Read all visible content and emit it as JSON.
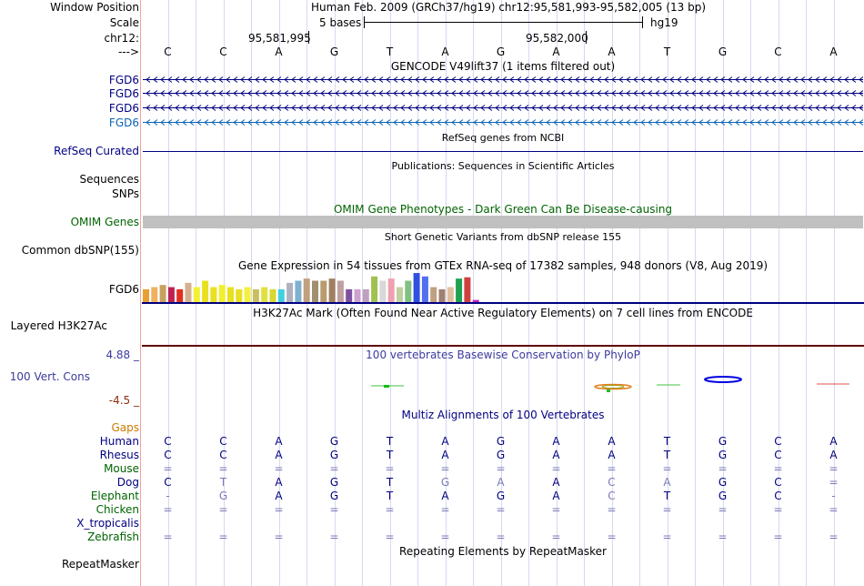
{
  "header": {
    "window_position_label": "Window Position",
    "window_position_text": "Human Feb. 2009 (GRCh37/hg19)   chr12:95,581,993-95,582,005 (13 bp)",
    "scale_label": "Scale",
    "scale_text": "5 bases",
    "assembly": "hg19",
    "chrom_label": "chr12:",
    "pos1": "95,581,995",
    "pos2": "95,582,000",
    "strand_label": "--->"
  },
  "sequence": [
    "C",
    "C",
    "A",
    "G",
    "T",
    "A",
    "G",
    "A",
    "A",
    "T",
    "G",
    "C",
    "A"
  ],
  "tracks": {
    "gencode": {
      "title": "GENCODE V49lift37 (1 items filtered out)",
      "items": [
        "FGD6",
        "FGD6",
        "FGD6",
        "FGD6"
      ]
    },
    "refseq": {
      "title": "RefSeq genes from NCBI",
      "label": "RefSeq Curated"
    },
    "publications": {
      "title": "Publications: Sequences in Scientific Articles",
      "labels": [
        "Sequences",
        "SNPs"
      ]
    },
    "omim": {
      "title": "OMIM Gene Phenotypes - Dark Green Can Be Disease-causing",
      "label": "OMIM Genes"
    },
    "dbsnp": {
      "title": "Short Genetic Variants from dbSNP release 155",
      "label": "Common dbSNP(155)"
    },
    "gtex": {
      "title": "Gene Expression in 54 tissues from GTEx RNA-seq of 17382 samples, 948 donors (V8, Aug 2019)",
      "label": "FGD6"
    },
    "h3k27ac": {
      "title": "H3K27Ac Mark (Often Found Near Active Regulatory Elements) on 7 cell lines from ENCODE",
      "label": "Layered H3K27Ac"
    },
    "phylop": {
      "title": "100 vertebrates Basewise Conservation by PhyloP",
      "label": "100 Vert. Cons",
      "max": "4.88 _",
      "min": "-4.5 _"
    },
    "multiz": {
      "title": "Multiz Alignments of 100 Vertebrates",
      "gaps_label": "Gaps"
    },
    "repeatmasker": {
      "title": "Repeating Elements by RepeatMasker",
      "label": "RepeatMasker"
    }
  },
  "species": [
    {
      "name": "Human",
      "bases": [
        "C",
        "C",
        "A",
        "G",
        "T",
        "A",
        "G",
        "A",
        "A",
        "T",
        "G",
        "C",
        "A"
      ]
    },
    {
      "name": "Rhesus",
      "bases": [
        "C",
        "C",
        "A",
        "G",
        "T",
        "A",
        "G",
        "A",
        "A",
        "T",
        "G",
        "C",
        "A"
      ]
    },
    {
      "name": "Mouse",
      "bases": [
        "=",
        "=",
        "=",
        "=",
        "=",
        "=",
        "=",
        "=",
        "=",
        "=",
        "=",
        "=",
        "="
      ]
    },
    {
      "name": "Dog",
      "bases": [
        "C",
        "T",
        "A",
        "G",
        "T",
        "G",
        "A",
        "A",
        "C",
        "A",
        "G",
        "C",
        "="
      ]
    },
    {
      "name": "Elephant",
      "bases": [
        "-",
        "G",
        "A",
        "G",
        "T",
        "A",
        "G",
        "A",
        "C",
        "T",
        "G",
        "C",
        "-"
      ]
    },
    {
      "name": "Chicken",
      "bases": [
        "=",
        "=",
        "=",
        "=",
        "=",
        "=",
        "=",
        "=",
        "=",
        "=",
        "=",
        "=",
        "="
      ]
    },
    {
      "name": "X_tropicalis",
      "bases": [
        "",
        "",
        "",
        "",
        "",
        "",
        "",
        "",
        "",
        "",
        "",
        "",
        ""
      ]
    },
    {
      "name": "Zebrafish",
      "bases": [
        "=",
        "=",
        "=",
        "=",
        "=",
        "=",
        "=",
        "=",
        "=",
        "=",
        "=",
        "=",
        "="
      ]
    }
  ],
  "colors": {
    "navy": "#000080",
    "gencode_light": "#0c64b4",
    "omim_label": "#006400",
    "gaps_label": "#cc7a00",
    "phylop_title": "#3b3b9e",
    "phylop_max": "#3b3b9e",
    "phylop_min": "#8b2f0e",
    "h3k27_line": "#600000",
    "gtex_bars": [
      "#e8a032",
      "#f0b060",
      "#c8a060",
      "#c02050",
      "#e03020",
      "#d4b090",
      "#f4f034",
      "#e8e020",
      "#e8e020",
      "#f0f030",
      "#e8e020",
      "#e8e020",
      "#f4f040",
      "#c8c060",
      "#e0e040",
      "#d8d830",
      "#40d0e0",
      "#b0b0c0",
      "#80b0d0",
      "#c0a080",
      "#a09070",
      "#b89c70",
      "#a08060",
      "#c0a0a0",
      "#8050a0",
      "#d0a0d0",
      "#c0a0c0",
      "#a0c050",
      "#d8d8d8",
      "#f0a0b0",
      "#c0d0a0",
      "#80c080",
      "#3050e0",
      "#5070f0",
      "#c0a080",
      "#a08070",
      "#e0c0a0",
      "#20a050",
      "#d04040",
      "#c020c0"
    ],
    "gtex_heights": [
      0.3,
      0.35,
      0.4,
      0.35,
      0.3,
      0.45,
      0.35,
      0.5,
      0.35,
      0.4,
      0.35,
      0.3,
      0.35,
      0.3,
      0.35,
      0.3,
      0.3,
      0.45,
      0.5,
      0.55,
      0.5,
      0.5,
      0.55,
      0.5,
      0.3,
      0.3,
      0.3,
      0.6,
      0.5,
      0.55,
      0.35,
      0.5,
      0.68,
      0.6,
      0.35,
      0.3,
      0.35,
      0.55,
      0.58,
      0.05
    ]
  }
}
